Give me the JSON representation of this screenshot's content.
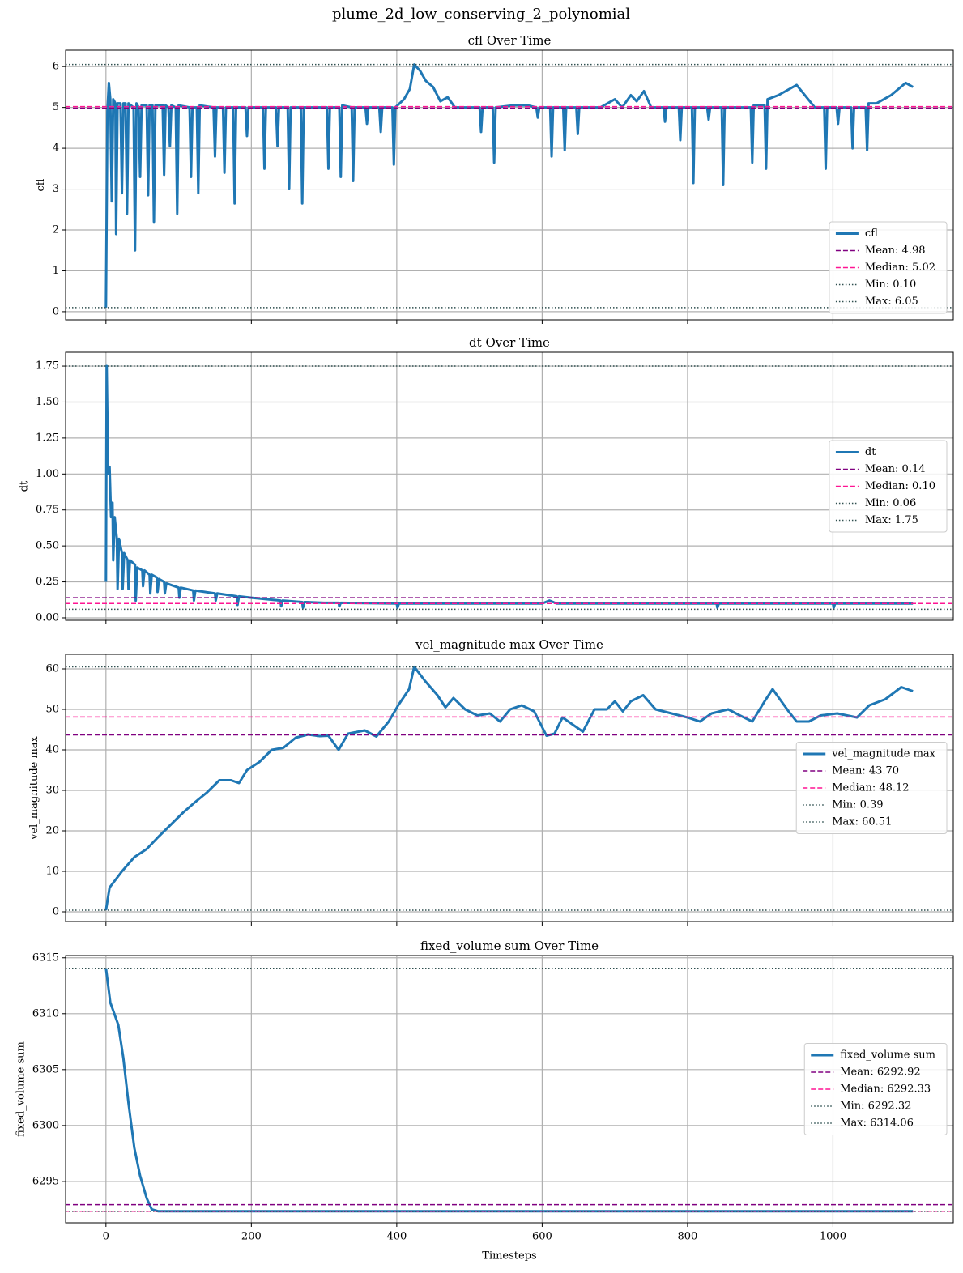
{
  "title": "plume_2d_low_conserving_2_polynomial",
  "chart_data": [
    {
      "type": "line",
      "title": "cfl Over Time",
      "ylabel": "cfl",
      "xlim": [
        -55.5,
        1165.5
      ],
      "ylim": [
        -0.2,
        6.4
      ],
      "xticks": [
        0,
        200,
        400,
        600,
        800,
        1000
      ],
      "xtick_labels": false,
      "yticks": [
        0,
        1,
        2,
        3,
        4,
        5,
        6
      ],
      "grid": true,
      "legend": "lower right",
      "series": [
        {
          "name": "cfl",
          "color": "#1f77b4",
          "x": [
            0,
            2,
            4,
            6,
            8,
            10,
            13,
            14,
            16,
            20,
            22,
            24,
            27,
            29,
            31,
            38,
            40,
            42,
            45,
            47,
            49,
            56,
            58,
            60,
            64,
            66,
            68,
            78,
            80,
            82,
            86,
            88,
            90,
            96,
            98,
            100,
            115,
            117,
            119,
            125,
            127,
            129,
            148,
            150,
            152,
            161,
            163,
            165,
            175,
            177,
            179,
            192,
            194,
            196,
            216,
            218,
            220,
            234,
            236,
            238,
            250,
            252,
            254,
            268,
            270,
            272,
            304,
            306,
            308,
            321,
            323,
            325,
            338,
            340,
            342,
            357,
            359,
            361,
            376,
            378,
            380,
            394,
            396,
            398,
            410,
            418,
            424,
            432,
            440,
            450,
            460,
            470,
            480,
            514,
            516,
            518,
            532,
            534,
            536,
            560,
            580,
            592,
            594,
            596,
            611,
            613,
            615,
            629,
            631,
            633,
            647,
            649,
            651,
            680,
            700,
            710,
            722,
            730,
            740,
            750,
            767,
            769,
            771,
            788,
            790,
            792,
            806,
            808,
            810,
            827,
            829,
            831,
            847,
            849,
            851,
            887,
            889,
            891,
            906,
            908,
            910,
            925,
            950,
            975,
            988,
            990,
            992,
            1005,
            1007,
            1009,
            1025,
            1027,
            1029,
            1045,
            1047,
            1049,
            1060,
            1080,
            1100,
            1110
          ],
          "values": [
            0.1,
            4.9,
            5.6,
            5.2,
            2.7,
            5.2,
            5.1,
            1.9,
            5.1,
            5.1,
            2.9,
            5.1,
            5.1,
            2.4,
            5.1,
            5.0,
            1.5,
            5.1,
            5.0,
            3.3,
            5.05,
            5.05,
            2.85,
            5.05,
            5.05,
            2.2,
            5.05,
            5.05,
            3.35,
            5.05,
            5.0,
            4.05,
            5.05,
            5.0,
            2.4,
            5.05,
            5.0,
            3.3,
            5.0,
            5.0,
            2.9,
            5.05,
            5.0,
            3.8,
            5.0,
            5.0,
            3.4,
            5.0,
            5.0,
            2.65,
            5.0,
            5.0,
            4.3,
            5.0,
            5.0,
            3.5,
            5.0,
            5.0,
            4.05,
            5.0,
            5.0,
            3.0,
            5.0,
            5.0,
            2.65,
            5.0,
            5.0,
            3.5,
            5.0,
            5.0,
            3.3,
            5.05,
            5.0,
            3.2,
            5.0,
            5.0,
            4.6,
            5.0,
            5.0,
            4.4,
            5.0,
            5.0,
            3.6,
            5.0,
            5.2,
            5.45,
            6.05,
            5.9,
            5.65,
            5.5,
            5.15,
            5.25,
            5.0,
            5.0,
            4.4,
            5.0,
            5.0,
            3.65,
            5.0,
            5.05,
            5.05,
            5.0,
            4.75,
            5.0,
            5.0,
            3.8,
            5.0,
            5.0,
            3.95,
            5.0,
            5.0,
            4.35,
            5.0,
            5.0,
            5.2,
            5.0,
            5.3,
            5.15,
            5.4,
            5.0,
            5.0,
            4.65,
            5.0,
            5.0,
            4.2,
            5.0,
            5.0,
            3.15,
            5.0,
            5.0,
            4.7,
            5.0,
            5.0,
            3.1,
            5.0,
            5.0,
            3.65,
            5.05,
            5.05,
            3.5,
            5.2,
            5.3,
            5.55,
            5.0,
            5.0,
            3.5,
            5.0,
            5.0,
            4.6,
            5.0,
            5.0,
            4.0,
            5.0,
            5.0,
            3.95,
            5.1,
            5.1,
            5.3,
            5.6,
            5.5
          ]
        }
      ],
      "reference_lines": [
        {
          "name": "Mean: 4.98",
          "value": 4.98,
          "color": "#800080",
          "style": "dashed"
        },
        {
          "name": "Median: 5.02",
          "value": 5.02,
          "color": "#ff1493",
          "style": "dashed"
        },
        {
          "name": "Min: 0.10",
          "value": 0.1,
          "color": "#2f4f4f",
          "style": "dotted"
        },
        {
          "name": "Max: 6.05",
          "value": 6.05,
          "color": "#2f4f4f",
          "style": "dotted"
        }
      ]
    },
    {
      "type": "line",
      "title": "dt Over Time",
      "ylabel": "dt",
      "xlim": [
        -55.5,
        1165.5
      ],
      "ylim": [
        -0.017,
        1.846
      ],
      "xticks": [
        0,
        200,
        400,
        600,
        800,
        1000
      ],
      "xtick_labels": false,
      "yticks": [
        {
          "value": 0,
          "label": "0.00"
        },
        0.25,
        {
          "value": 0.5,
          "label": "0.50"
        },
        0.75,
        {
          "value": 1,
          "label": "1.00"
        },
        1.25,
        {
          "value": 1.5,
          "label": "1.50"
        },
        1.75
      ],
      "grid": true,
      "legend": "center right",
      "series": [
        {
          "name": "dt",
          "color": "#1f77b4",
          "x": [
            0,
            1,
            3,
            5,
            7,
            9,
            10,
            12,
            15,
            16,
            18,
            22,
            23,
            25,
            30,
            31,
            33,
            40,
            41,
            43,
            50,
            51,
            53,
            60,
            61,
            63,
            70,
            71,
            73,
            80,
            81,
            83,
            100,
            101,
            103,
            120,
            121,
            123,
            150,
            151,
            153,
            180,
            181,
            183,
            200,
            220,
            240,
            241,
            243,
            270,
            271,
            273,
            300,
            320,
            321,
            323,
            400,
            401,
            403,
            600,
            610,
            620,
            840,
            841,
            843,
            1000,
            1001,
            1003,
            1110
          ],
          "values": [
            0.25,
            1.75,
            1.0,
            1.05,
            0.7,
            0.8,
            0.4,
            0.7,
            0.55,
            0.2,
            0.55,
            0.45,
            0.2,
            0.45,
            0.4,
            0.2,
            0.4,
            0.37,
            0.12,
            0.35,
            0.33,
            0.22,
            0.33,
            0.3,
            0.17,
            0.3,
            0.28,
            0.18,
            0.27,
            0.25,
            0.17,
            0.24,
            0.21,
            0.14,
            0.21,
            0.19,
            0.12,
            0.19,
            0.17,
            0.12,
            0.17,
            0.15,
            0.09,
            0.15,
            0.14,
            0.13,
            0.12,
            0.08,
            0.12,
            0.11,
            0.07,
            0.11,
            0.105,
            0.105,
            0.08,
            0.105,
            0.1,
            0.07,
            0.1,
            0.1,
            0.12,
            0.1,
            0.1,
            0.07,
            0.1,
            0.1,
            0.07,
            0.1,
            0.1
          ]
        }
      ],
      "reference_lines": [
        {
          "name": "Mean: 0.14",
          "value": 0.14,
          "color": "#800080",
          "style": "dashed"
        },
        {
          "name": "Median: 0.10",
          "value": 0.1,
          "color": "#ff1493",
          "style": "dashed"
        },
        {
          "name": "Min: 0.06",
          "value": 0.06,
          "color": "#2f4f4f",
          "style": "dotted"
        },
        {
          "name": "Max: 1.75",
          "value": 1.75,
          "color": "#2f4f4f",
          "style": "dotted"
        }
      ]
    },
    {
      "type": "line",
      "title": "vel_magnitude max Over Time",
      "ylabel": "vel_magnitude max",
      "xlim": [
        -55.5,
        1165.5
      ],
      "ylim": [
        -2.4,
        63.6
      ],
      "xticks": [
        0,
        200,
        400,
        600,
        800,
        1000
      ],
      "xtick_labels": false,
      "yticks": [
        0,
        10,
        20,
        30,
        40,
        50,
        60
      ],
      "grid": true,
      "legend": "center right",
      "series": [
        {
          "name": "vel_magnitude max",
          "color": "#1f77b4",
          "x": [
            0,
            5,
            22,
            39,
            56,
            72,
            89,
            106,
            122,
            139,
            156,
            172,
            183,
            194,
            211,
            228,
            244,
            261,
            278,
            294,
            306,
            320,
            333,
            356,
            372,
            389,
            402,
            417,
            424,
            439,
            456,
            467,
            478,
            494,
            511,
            528,
            542,
            556,
            572,
            589,
            606,
            617,
            628,
            644,
            656,
            672,
            689,
            700,
            711,
            722,
            739,
            756,
            778,
            800,
            817,
            833,
            856,
            872,
            889,
            906,
            917,
            939,
            950,
            967,
            983,
            1006,
            1033,
            1050,
            1072,
            1094,
            1110
          ],
          "values": [
            0.39,
            6,
            10,
            13.5,
            15.5,
            18.5,
            21.5,
            24.5,
            27,
            29.5,
            32.5,
            32.5,
            31.8,
            35,
            37,
            40,
            40.5,
            43,
            43.8,
            43.4,
            43.5,
            40,
            44,
            44.8,
            43.3,
            47,
            51,
            55,
            60.51,
            57,
            53.5,
            50.5,
            52.8,
            50,
            48.5,
            49,
            47,
            50,
            51,
            49.5,
            43.5,
            44,
            48,
            46,
            44.5,
            50,
            50,
            52,
            49.5,
            52,
            53.5,
            50,
            49,
            48,
            47,
            49,
            50,
            48.5,
            47,
            52,
            55,
            49.5,
            47,
            47,
            48.5,
            49,
            48,
            51,
            52.5,
            55.5,
            54.5
          ]
        }
      ],
      "reference_lines": [
        {
          "name": "Mean: 43.70",
          "value": 43.7,
          "color": "#800080",
          "style": "dashed"
        },
        {
          "name": "Median: 48.12",
          "value": 48.12,
          "color": "#ff1493",
          "style": "dashed"
        },
        {
          "name": "Min: 0.39",
          "value": 0.39,
          "color": "#2f4f4f",
          "style": "dotted"
        },
        {
          "name": "Max: 60.51",
          "value": 60.51,
          "color": "#2f4f4f",
          "style": "dotted"
        }
      ]
    },
    {
      "type": "line",
      "title": "fixed_volume sum Over Time",
      "ylabel": "fixed_volume sum",
      "xlabel": "Timesteps",
      "xlim": [
        -55.5,
        1165.5
      ],
      "ylim": [
        6291.3,
        6315.2
      ],
      "xticks": [
        0,
        200,
        400,
        600,
        800,
        1000
      ],
      "xtick_labels": true,
      "yticks": [
        6295,
        6300,
        6305,
        6310,
        6315
      ],
      "grid": true,
      "legend": "center right",
      "series": [
        {
          "name": "fixed_volume sum",
          "color": "#1f77b4",
          "x": [
            0,
            6,
            17,
            24,
            31,
            39,
            47,
            56,
            63,
            72,
            1110
          ],
          "values": [
            6314.06,
            6311,
            6309,
            6306,
            6302,
            6298,
            6295.5,
            6293.5,
            6292.5,
            6292.33,
            6292.33
          ]
        }
      ],
      "reference_lines": [
        {
          "name": "Mean: 6292.92",
          "value": 6292.92,
          "color": "#800080",
          "style": "dashed"
        },
        {
          "name": "Median: 6292.33",
          "value": 6292.33,
          "color": "#ff1493",
          "style": "dashed"
        },
        {
          "name": "Min: 6292.32",
          "value": 6292.32,
          "color": "#2f4f4f",
          "style": "dotted"
        },
        {
          "name": "Max: 6314.06",
          "value": 6314.06,
          "color": "#2f4f4f",
          "style": "dotted"
        }
      ]
    }
  ]
}
